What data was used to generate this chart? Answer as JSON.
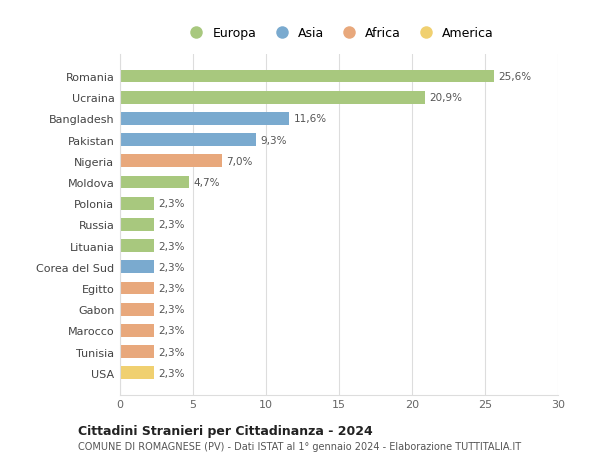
{
  "countries": [
    "Romania",
    "Ucraina",
    "Bangladesh",
    "Pakistan",
    "Nigeria",
    "Moldova",
    "Polonia",
    "Russia",
    "Lituania",
    "Corea del Sud",
    "Egitto",
    "Gabon",
    "Marocco",
    "Tunisia",
    "USA"
  ],
  "values": [
    25.6,
    20.9,
    11.6,
    9.3,
    7.0,
    4.7,
    2.3,
    2.3,
    2.3,
    2.3,
    2.3,
    2.3,
    2.3,
    2.3,
    2.3
  ],
  "labels": [
    "25,6%",
    "20,9%",
    "11,6%",
    "9,3%",
    "7,0%",
    "4,7%",
    "2,3%",
    "2,3%",
    "2,3%",
    "2,3%",
    "2,3%",
    "2,3%",
    "2,3%",
    "2,3%",
    "2,3%"
  ],
  "continents": [
    "Europa",
    "Europa",
    "Asia",
    "Asia",
    "Africa",
    "Europa",
    "Europa",
    "Europa",
    "Europa",
    "Asia",
    "Africa",
    "Africa",
    "Africa",
    "Africa",
    "America"
  ],
  "colors": {
    "Europa": "#a8c87e",
    "Asia": "#7aaacf",
    "Africa": "#e8a87c",
    "America": "#f0d070"
  },
  "legend_order": [
    "Europa",
    "Asia",
    "Africa",
    "America"
  ],
  "xlim": [
    0,
    30
  ],
  "xticks": [
    0,
    5,
    10,
    15,
    20,
    25,
    30
  ],
  "title": "Cittadini Stranieri per Cittadinanza - 2024",
  "subtitle": "COMUNE DI ROMAGNESE (PV) - Dati ISTAT al 1° gennaio 2024 - Elaborazione TUTTITALIA.IT",
  "bg_color": "#ffffff",
  "grid_color": "#dddddd",
  "bar_height": 0.6
}
